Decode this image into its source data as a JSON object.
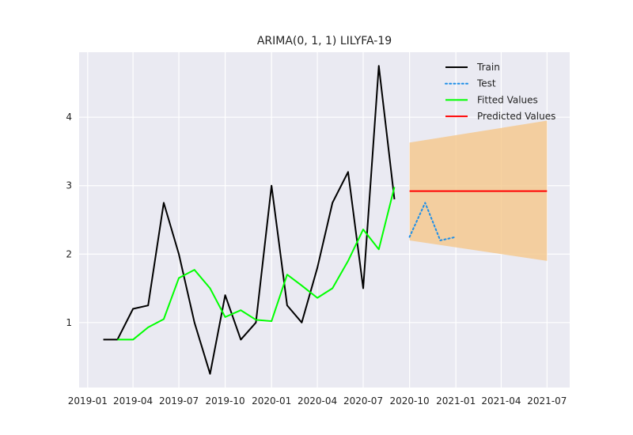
{
  "chart_data": {
    "type": "line",
    "title": "ARIMA(0, 1, 1) LILYFA-19",
    "xlabel": "",
    "ylabel": "",
    "x_ticks": [
      "2019-01",
      "2019-04",
      "2019-07",
      "2019-10",
      "2020-01",
      "2020-04",
      "2020-07",
      "2020-10",
      "2021-01",
      "2021-04",
      "2021-07"
    ],
    "y_ticks": [
      "1",
      "2",
      "3",
      "4"
    ],
    "ylim": [
      0.05,
      4.95
    ],
    "xlim": [
      "2018-12-15",
      "2021-08-15"
    ],
    "grid": true,
    "legend_position": "top-right",
    "series": [
      {
        "name": "Train",
        "style": "solid",
        "color": "#000000",
        "x": [
          "2019-02",
          "2019-03",
          "2019-04",
          "2019-05",
          "2019-06",
          "2019-07",
          "2019-08",
          "2019-09",
          "2019-10",
          "2019-11",
          "2019-12",
          "2020-01",
          "2020-02",
          "2020-03",
          "2020-04",
          "2020-05",
          "2020-06",
          "2020-07",
          "2020-08",
          "2020-09"
        ],
        "values": [
          0.75,
          0.75,
          1.2,
          1.25,
          2.75,
          2.0,
          1.0,
          0.25,
          1.4,
          0.75,
          1.0,
          3.0,
          1.25,
          1.0,
          1.8,
          2.75,
          3.2,
          1.5,
          4.75,
          2.8
        ]
      },
      {
        "name": "Test",
        "style": "dotted",
        "color": "#1f8fe8",
        "x": [
          "2020-10",
          "2020-11",
          "2020-12",
          "2021-01"
        ],
        "values": [
          2.25,
          2.75,
          2.2,
          2.25
        ]
      },
      {
        "name": "Fitted Values",
        "style": "solid",
        "color": "#00ff00",
        "x": [
          "2019-03",
          "2019-04",
          "2019-05",
          "2019-06",
          "2019-07",
          "2019-08",
          "2019-09",
          "2019-10",
          "2019-11",
          "2019-12",
          "2020-01",
          "2020-02",
          "2020-03",
          "2020-04",
          "2020-05",
          "2020-06",
          "2020-07",
          "2020-08",
          "2020-09"
        ],
        "values": [
          0.75,
          0.75,
          0.93,
          1.05,
          1.65,
          1.77,
          1.5,
          1.08,
          1.18,
          1.04,
          1.02,
          1.7,
          1.54,
          1.36,
          1.5,
          1.9,
          2.36,
          2.07,
          2.98
        ]
      },
      {
        "name": "Predicted Values",
        "style": "solid",
        "color": "#ff0000",
        "x": [
          "2020-10",
          "2021-07"
        ],
        "values": [
          2.92,
          2.92
        ]
      }
    ],
    "confidence_band": {
      "color": "#f5c78a",
      "x": [
        "2020-10",
        "2021-07"
      ],
      "upper": [
        3.63,
        3.95
      ],
      "lower": [
        2.2,
        1.9
      ]
    }
  }
}
